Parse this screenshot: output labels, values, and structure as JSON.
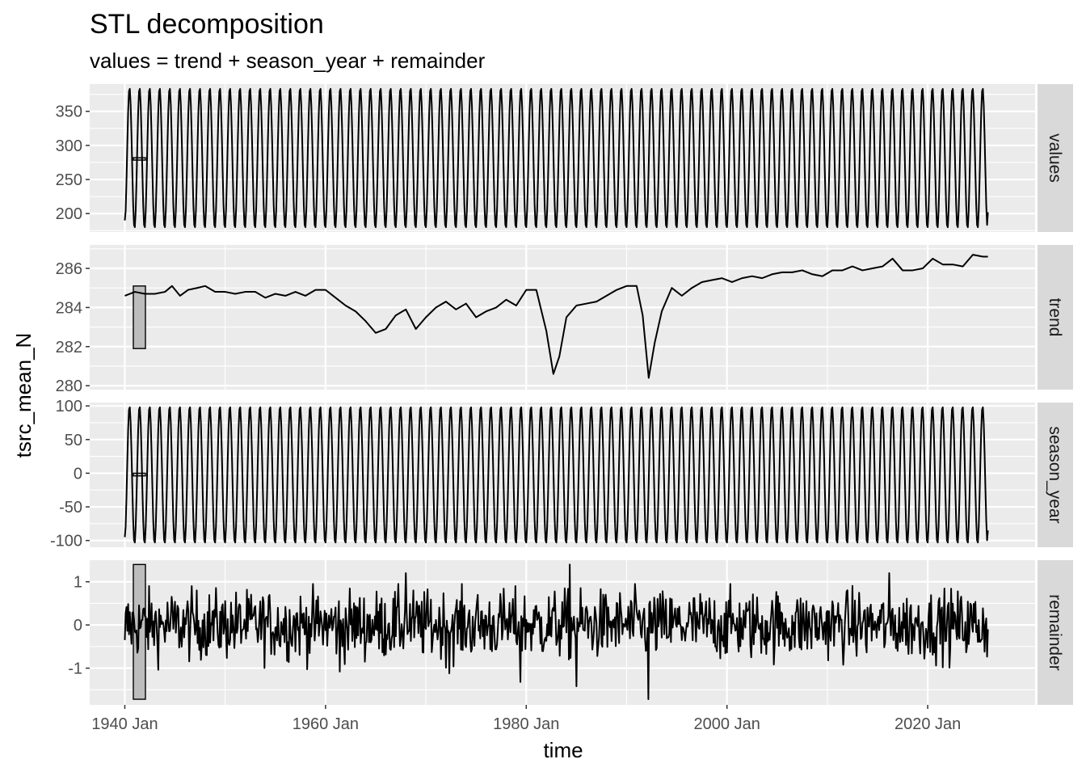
{
  "chart_data": {
    "type": "line",
    "title": "STL decomposition",
    "subtitle": "values = trend + season_year + remainder",
    "xlabel": "time",
    "ylabel": "tsrc_mean_N",
    "x_range": [
      "1940 Jan",
      "2025 Dec"
    ],
    "x_ticks": [
      "1940 Jan",
      "1960 Jan",
      "1980 Jan",
      "2000 Jan",
      "2020 Jan"
    ],
    "grid": true,
    "facets": [
      {
        "name": "values",
        "ylim": [
          173,
          390
        ],
        "yticks": [
          200,
          250,
          300,
          350
        ],
        "scale_bar": [
          279,
          282
        ],
        "series": {
          "kind": "seasonal",
          "cycles_per_year": 1,
          "peak": 385,
          "trough": 178,
          "start": 190,
          "end": 202
        }
      },
      {
        "name": "trend",
        "ylim": [
          279.8,
          287.2
        ],
        "yticks": [
          280,
          282,
          284,
          286
        ],
        "scale_bar": [
          281.9,
          285.1
        ],
        "series": {
          "kind": "line",
          "x": [
            1940.0,
            1941.0,
            1942.0,
            1943.0,
            1944.0,
            1944.7,
            1945.5,
            1946.3,
            1947.2,
            1948.0,
            1949.0,
            1950.0,
            1951.0,
            1952.0,
            1953.0,
            1954.0,
            1955.0,
            1956.0,
            1957.0,
            1958.0,
            1959.0,
            1960.0,
            1961.0,
            1962.0,
            1963.0,
            1964.0,
            1965.0,
            1966.0,
            1967.0,
            1968.0,
            1969.0,
            1970.0,
            1971.0,
            1972.0,
            1973.0,
            1974.0,
            1975.0,
            1976.0,
            1977.0,
            1978.0,
            1979.0,
            1980.0,
            1981.0,
            1982.0,
            1982.7,
            1983.3,
            1984.0,
            1985.0,
            1986.0,
            1987.0,
            1988.0,
            1989.0,
            1990.0,
            1991.0,
            1991.6,
            1992.2,
            1992.8,
            1993.5,
            1994.5,
            1995.5,
            1996.5,
            1997.5,
            1998.5,
            1999.5,
            2000.5,
            2001.5,
            2002.5,
            2003.5,
            2004.5,
            2005.5,
            2006.5,
            2007.5,
            2008.5,
            2009.5,
            2010.5,
            2011.5,
            2012.5,
            2013.5,
            2014.5,
            2015.5,
            2016.5,
            2017.5,
            2018.5,
            2019.5,
            2020.5,
            2021.5,
            2022.5,
            2023.5,
            2024.5,
            2025.5,
            2026.0
          ],
          "y": [
            284.6,
            284.8,
            284.7,
            284.7,
            284.8,
            285.1,
            284.6,
            284.9,
            285.0,
            285.1,
            284.8,
            284.8,
            284.7,
            284.8,
            284.8,
            284.5,
            284.7,
            284.6,
            284.8,
            284.6,
            284.9,
            284.9,
            284.5,
            284.1,
            283.8,
            283.3,
            282.7,
            282.9,
            283.6,
            283.9,
            282.9,
            283.5,
            284.0,
            284.3,
            283.9,
            284.2,
            283.5,
            283.8,
            284.0,
            284.4,
            284.1,
            284.9,
            284.9,
            282.8,
            280.6,
            281.5,
            283.5,
            284.1,
            284.2,
            284.3,
            284.6,
            284.9,
            285.1,
            285.1,
            283.6,
            280.4,
            282.2,
            283.8,
            285.0,
            284.6,
            285.0,
            285.3,
            285.4,
            285.5,
            285.3,
            285.5,
            285.6,
            285.5,
            285.7,
            285.8,
            285.8,
            285.9,
            285.7,
            285.6,
            285.9,
            285.9,
            286.1,
            285.9,
            286.0,
            286.1,
            286.5,
            285.9,
            285.9,
            286.0,
            286.5,
            286.2,
            286.2,
            286.1,
            286.7,
            286.6,
            286.6
          ]
        }
      },
      {
        "name": "season_year",
        "ylim": [
          -110,
          105
        ],
        "yticks": [
          -100,
          -50,
          0,
          50,
          100
        ],
        "yticklabels": [
          "-100",
          "-50",
          "0",
          "50",
          "100"
        ],
        "scale_bar": [
          -4,
          0
        ],
        "series": {
          "kind": "seasonal",
          "cycles_per_year": 1,
          "peak": 100,
          "trough": -105,
          "start": -95,
          "end": -85
        }
      },
      {
        "name": "remainder",
        "ylim": [
          -1.85,
          1.5
        ],
        "yticks": [
          -1,
          0,
          1
        ],
        "yticklabels": [
          "-1",
          "0",
          "1"
        ],
        "scale_bar": [
          -1.72,
          1.4
        ],
        "series": {
          "kind": "noise",
          "sd": 0.4,
          "start": -0.35,
          "end": -0.1,
          "extremes": [
            {
              "x": 1992.2,
              "y": -1.72
            },
            {
              "x": 1984.3,
              "y": 1.4
            },
            {
              "x": 1968.0,
              "y": 1.2
            },
            {
              "x": 2016.2,
              "y": 1.2
            },
            {
              "x": 1985.0,
              "y": -1.42
            },
            {
              "x": 1979.4,
              "y": -1.32
            },
            {
              "x": 1972.3,
              "y": -1.12
            },
            {
              "x": 1961.4,
              "y": -1.08
            }
          ]
        }
      }
    ]
  }
}
